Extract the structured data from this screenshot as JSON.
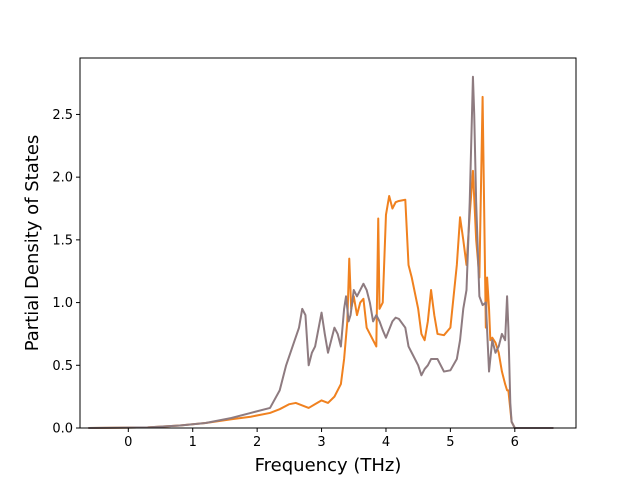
{
  "chart_data": {
    "type": "line",
    "title": "",
    "xlabel": "Frequency (THz)",
    "ylabel": "Partial Density of States",
    "xlim": [
      -0.75,
      6.95
    ],
    "ylim": [
      0.0,
      2.95
    ],
    "xticks": [
      0,
      1,
      2,
      3,
      4,
      5,
      6
    ],
    "xtick_labels": [
      "0",
      "1",
      "2",
      "3",
      "4",
      "5",
      "6"
    ],
    "yticks": [
      0.0,
      0.5,
      1.0,
      1.5,
      2.0,
      2.5
    ],
    "ytick_labels": [
      "0.0",
      "0.5",
      "1.0",
      "1.5",
      "2.0",
      "2.5"
    ],
    "grid": false,
    "legend": "none",
    "series": [
      {
        "color": "#f0811f",
        "x": [
          -0.62,
          0.3,
          0.8,
          1.2,
          1.6,
          1.9,
          2.2,
          2.35,
          2.5,
          2.6,
          2.7,
          2.8,
          2.9,
          3.0,
          3.1,
          3.2,
          3.3,
          3.35,
          3.4,
          3.43,
          3.46,
          3.5,
          3.55,
          3.6,
          3.65,
          3.7,
          3.75,
          3.8,
          3.85,
          3.88,
          3.9,
          3.95,
          4.0,
          4.05,
          4.1,
          4.15,
          4.2,
          4.3,
          4.35,
          4.4,
          4.5,
          4.55,
          4.6,
          4.65,
          4.7,
          4.75,
          4.8,
          4.9,
          5.0,
          5.1,
          5.15,
          5.2,
          5.25,
          5.3,
          5.35,
          5.4,
          5.45,
          5.5,
          5.55,
          5.57,
          5.6,
          5.62,
          5.65,
          5.7,
          5.75,
          5.8,
          5.85,
          5.88,
          5.9,
          5.93,
          5.95,
          6.0,
          6.6
        ],
        "values": [
          0.0,
          0.005,
          0.02,
          0.04,
          0.07,
          0.09,
          0.12,
          0.15,
          0.19,
          0.2,
          0.18,
          0.16,
          0.19,
          0.22,
          0.2,
          0.25,
          0.35,
          0.55,
          0.85,
          1.35,
          0.95,
          1.05,
          0.9,
          1.0,
          1.03,
          0.8,
          0.75,
          0.7,
          0.65,
          1.67,
          0.95,
          1.0,
          1.7,
          1.85,
          1.75,
          1.8,
          1.81,
          1.82,
          1.3,
          1.2,
          0.95,
          0.75,
          0.7,
          0.85,
          1.1,
          0.9,
          0.75,
          0.74,
          0.8,
          1.3,
          1.68,
          1.5,
          1.3,
          1.7,
          2.05,
          1.5,
          1.2,
          2.64,
          0.8,
          1.2,
          0.95,
          0.7,
          0.72,
          0.68,
          0.6,
          0.45,
          0.35,
          0.3,
          0.3,
          0.15,
          0.05,
          0.0,
          0.0
        ]
      },
      {
        "color": "#8e7b80",
        "x": [
          -0.62,
          0.3,
          0.8,
          1.2,
          1.6,
          1.9,
          2.2,
          2.35,
          2.45,
          2.55,
          2.65,
          2.7,
          2.75,
          2.8,
          2.85,
          2.9,
          3.0,
          3.05,
          3.1,
          3.2,
          3.25,
          3.3,
          3.35,
          3.38,
          3.42,
          3.45,
          3.5,
          3.55,
          3.6,
          3.65,
          3.7,
          3.75,
          3.8,
          3.85,
          3.9,
          3.95,
          4.0,
          4.1,
          4.15,
          4.2,
          4.3,
          4.35,
          4.4,
          4.5,
          4.55,
          4.6,
          4.65,
          4.7,
          4.8,
          4.9,
          5.0,
          5.1,
          5.15,
          5.2,
          5.25,
          5.3,
          5.35,
          5.37,
          5.4,
          5.45,
          5.5,
          5.55,
          5.6,
          5.65,
          5.7,
          5.75,
          5.8,
          5.85,
          5.88,
          5.9,
          5.93,
          5.95,
          6.0,
          6.6
        ],
        "values": [
          0.0,
          0.005,
          0.02,
          0.04,
          0.08,
          0.12,
          0.16,
          0.3,
          0.5,
          0.65,
          0.8,
          0.95,
          0.9,
          0.5,
          0.6,
          0.65,
          0.92,
          0.75,
          0.6,
          0.8,
          0.75,
          0.65,
          0.95,
          1.05,
          0.85,
          0.9,
          1.1,
          1.05,
          1.1,
          1.15,
          1.1,
          1.0,
          0.85,
          0.9,
          0.85,
          0.78,
          0.72,
          0.85,
          0.88,
          0.87,
          0.8,
          0.65,
          0.6,
          0.5,
          0.42,
          0.47,
          0.5,
          0.55,
          0.55,
          0.45,
          0.46,
          0.55,
          0.7,
          0.95,
          1.1,
          1.8,
          2.8,
          2.5,
          1.8,
          1.05,
          0.98,
          1.0,
          0.45,
          0.7,
          0.6,
          0.65,
          0.75,
          0.7,
          1.05,
          0.8,
          0.2,
          0.05,
          0.0,
          0.0
        ]
      }
    ]
  }
}
